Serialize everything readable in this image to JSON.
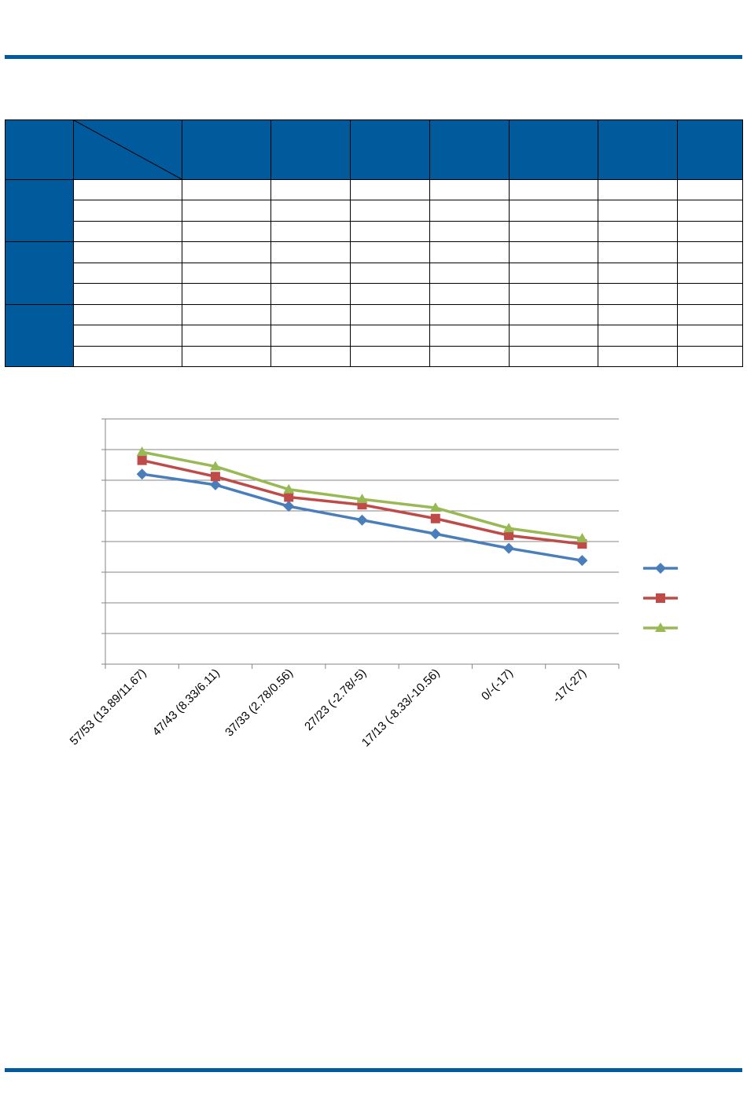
{
  "colors": {
    "accent": "#005a9c",
    "series": [
      "#4a7ebb",
      "#be4b48",
      "#98b954"
    ],
    "gridline": "#868686"
  },
  "table": {
    "column_count": 9,
    "group_count": 3,
    "rows_per_group": 3
  },
  "chart_data": {
    "type": "line",
    "categories": [
      "57/53 (13.89/11.67)",
      "47/43 (8.33/6.11)",
      "37/33 (2.78/0.56)",
      "27/23 (-2.78/-5)",
      "17/13 (-8.33/-10.56)",
      "0/-(-17)",
      "-17(-27)"
    ],
    "ylim": [
      0,
      8
    ],
    "y_gridlines": 8,
    "grid": true,
    "legend_position": "right",
    "series": [
      {
        "marker": "diamond",
        "values": [
          6.2,
          5.85,
          5.15,
          4.7,
          4.25,
          3.78,
          3.38
        ]
      },
      {
        "marker": "square",
        "values": [
          6.65,
          6.12,
          5.45,
          5.2,
          4.75,
          4.2,
          3.92
        ]
      },
      {
        "marker": "triangle",
        "values": [
          6.92,
          6.45,
          5.7,
          5.38,
          5.1,
          4.43,
          4.1
        ]
      }
    ]
  }
}
